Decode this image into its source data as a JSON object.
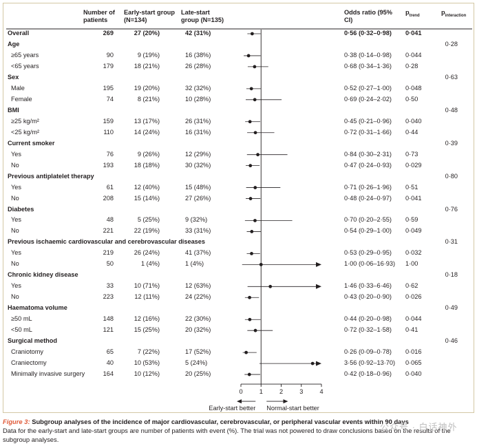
{
  "headers": {
    "patients": "Number of patients",
    "early": "Early-start group (N=134)",
    "late": "Late-start group (N=135)",
    "or": "Odds ratio (95% CI)",
    "ptrend": "p",
    "ptrend_sub": "trend",
    "pinter": "p",
    "pinter_sub": "interaction"
  },
  "chart_data": {
    "type": "forest",
    "x_ticks": [
      "0",
      "1",
      "2",
      "3",
      "4"
    ],
    "xlim": [
      0,
      4
    ],
    "reference_line": 1,
    "left_label": "Early-start better",
    "right_label": "Normal-start better",
    "rows": [
      {
        "kind": "row",
        "label": "Overall",
        "bold": true,
        "n": "269",
        "early": "27 (20%)",
        "late": "42 (31%)",
        "or_text": "0·56 (0·32–0·98)",
        "ptrend": "0·041",
        "est": 0.56,
        "lo": 0.32,
        "hi": 0.98
      },
      {
        "kind": "section",
        "label": "Age",
        "pinter": "0·28"
      },
      {
        "kind": "row",
        "label": "≥65 years",
        "n": "90",
        "early": "9 (19%)",
        "late": "16 (38%)",
        "or_text": "0·38 (0·14–0·98)",
        "ptrend": "0·044",
        "est": 0.38,
        "lo": 0.14,
        "hi": 0.98
      },
      {
        "kind": "row",
        "label": "<65 years",
        "n": "179",
        "early": "18 (21%)",
        "late": "26 (28%)",
        "or_text": "0·68 (0·34–1·36)",
        "ptrend": "0·28",
        "est": 0.68,
        "lo": 0.34,
        "hi": 1.36
      },
      {
        "kind": "section",
        "label": "Sex",
        "pinter": "0·63"
      },
      {
        "kind": "row",
        "label": "Male",
        "n": "195",
        "early": "19 (20%)",
        "late": "32 (32%)",
        "or_text": "0·52 (0·27–1·00)",
        "ptrend": "0·048",
        "est": 0.52,
        "lo": 0.27,
        "hi": 1.0
      },
      {
        "kind": "row",
        "label": "Female",
        "n": "74",
        "early": "8 (21%)",
        "late": "10 (28%)",
        "or_text": "0·69 (0·24–2·02)",
        "ptrend": "0·50",
        "est": 0.69,
        "lo": 0.24,
        "hi": 2.02
      },
      {
        "kind": "section",
        "label": "BMI",
        "pinter": "0·48"
      },
      {
        "kind": "row",
        "label": "≥25 kg/m²",
        "n": "159",
        "early": "13 (17%)",
        "late": "26 (31%)",
        "or_text": "0·45 (0·21–0·96)",
        "ptrend": "0·040",
        "est": 0.45,
        "lo": 0.21,
        "hi": 0.96
      },
      {
        "kind": "row",
        "label": "<25 kg/m²",
        "n": "110",
        "early": "14 (24%)",
        "late": "16 (31%)",
        "or_text": "0·72 (0·31–1·66)",
        "ptrend": "0·44",
        "est": 0.72,
        "lo": 0.31,
        "hi": 1.66
      },
      {
        "kind": "section",
        "label": "Current smoker",
        "pinter": "0·39"
      },
      {
        "kind": "row",
        "label": "Yes",
        "n": "76",
        "early": "9 (26%)",
        "late": "12 (29%)",
        "or_text": "0·84 (0·30–2·31)",
        "ptrend": "0·73",
        "est": 0.84,
        "lo": 0.3,
        "hi": 2.31
      },
      {
        "kind": "row",
        "label": "No",
        "n": "193",
        "early": "18 (18%)",
        "late": "30 (32%)",
        "or_text": "0·47 (0·24–0·93)",
        "ptrend": "0·029",
        "est": 0.47,
        "lo": 0.24,
        "hi": 0.93
      },
      {
        "kind": "section",
        "label": "Previous antiplatelet therapy",
        "pinter": "0·80"
      },
      {
        "kind": "row",
        "label": "Yes",
        "n": "61",
        "early": "12 (40%)",
        "late": "15 (48%)",
        "or_text": "0·71 (0·26–1·96)",
        "ptrend": "0·51",
        "est": 0.71,
        "lo": 0.26,
        "hi": 1.96
      },
      {
        "kind": "row",
        "label": "No",
        "n": "208",
        "early": "15 (14%)",
        "late": "27 (26%)",
        "or_text": "0·48 (0·24–0·97)",
        "ptrend": "0·041",
        "est": 0.48,
        "lo": 0.24,
        "hi": 0.97
      },
      {
        "kind": "section",
        "label": "Diabetes",
        "pinter": "0·76"
      },
      {
        "kind": "row",
        "label": "Yes",
        "n": "48",
        "early": "5 (25%)",
        "late": "9 (32%)",
        "or_text": "0·70 (0·20–2·55)",
        "ptrend": "0·59",
        "est": 0.7,
        "lo": 0.2,
        "hi": 2.55
      },
      {
        "kind": "row",
        "label": "No",
        "n": "221",
        "early": "22 (19%)",
        "late": "33 (31%)",
        "or_text": "0·54 (0·29–1·00)",
        "ptrend": "0·049",
        "est": 0.54,
        "lo": 0.29,
        "hi": 1.0
      },
      {
        "kind": "section",
        "label": "Previous ischaemic cardiovascular and cerebrovascular diseases",
        "pinter": "0·31"
      },
      {
        "kind": "row",
        "label": "Yes",
        "n": "219",
        "early": "26 (24%)",
        "late": "41 (37%)",
        "or_text": "0·53 (0·29–0·95)",
        "ptrend": "0·032",
        "est": 0.53,
        "lo": 0.29,
        "hi": 0.95
      },
      {
        "kind": "row",
        "label": "No",
        "n": "50",
        "early": "1 (4%)",
        "late": "1 (4%)",
        "or_text": "1·00 (0·06–16·93)",
        "ptrend": "1·00",
        "est": 1.0,
        "lo": 0.06,
        "hi": 16.93
      },
      {
        "kind": "section",
        "label": "Chronic kidney disease",
        "pinter": "0·18"
      },
      {
        "kind": "row",
        "label": "Yes",
        "n": "33",
        "early": "10 (71%)",
        "late": "12 (63%)",
        "or_text": "1·46 (0·33–6·46)",
        "ptrend": "0·62",
        "est": 1.46,
        "lo": 0.33,
        "hi": 6.46
      },
      {
        "kind": "row",
        "label": "No",
        "n": "223",
        "early": "12 (11%)",
        "late": "24 (22%)",
        "or_text": "0·43 (0·20–0·90)",
        "ptrend": "0·026",
        "est": 0.43,
        "lo": 0.2,
        "hi": 0.9
      },
      {
        "kind": "section",
        "label": "Haematoma volume",
        "pinter": "0·49"
      },
      {
        "kind": "row",
        "label": "≥50 mL",
        "n": "148",
        "early": "12 (16%)",
        "late": "22 (30%)",
        "or_text": "0·44 (0·20–0·98)",
        "ptrend": "0·044",
        "est": 0.44,
        "lo": 0.2,
        "hi": 0.98
      },
      {
        "kind": "row",
        "label": "<50 mL",
        "n": "121",
        "early": "15 (25%)",
        "late": "20 (32%)",
        "or_text": "0·72 (0·32–1·58)",
        "ptrend": "0·41",
        "est": 0.72,
        "lo": 0.32,
        "hi": 1.58
      },
      {
        "kind": "section",
        "label": "Surgical method",
        "pinter": "0·46"
      },
      {
        "kind": "row",
        "label": "Craniotomy",
        "n": "65",
        "early": "7 (22%)",
        "late": "17 (52%)",
        "or_text": "0·26 (0·09–0·78)",
        "ptrend": "0·016",
        "est": 0.26,
        "lo": 0.09,
        "hi": 0.78
      },
      {
        "kind": "row",
        "label": "Craniectomy",
        "n": "40",
        "early": "10 (53%)",
        "late": "5 (24%)",
        "or_text": "3·56 (0·92–13·70)",
        "ptrend": "0·065",
        "est": 3.56,
        "lo": 0.92,
        "hi": 13.7
      },
      {
        "kind": "row",
        "label": "Minimally invasive surgery",
        "n": "164",
        "early": "10 (12%)",
        "late": "20 (25%)",
        "or_text": "0·42 (0·18–0·96)",
        "ptrend": "0·040",
        "est": 0.42,
        "lo": 0.18,
        "hi": 0.96
      }
    ]
  },
  "caption": {
    "figure_label": "Figure 3:",
    "title": "Subgroup analyses of the incidence of major cardiovascular, cerebrovascular, or peripheral vascular events within 90 days",
    "body": "Data for the early-start and late-start groups are number of patients with event (%). The trial was not powered to draw conclusions based on the results of the subgroup analyses."
  },
  "watermark": "公众号 · 白话神外",
  "colors": {
    "text": "#231f20",
    "accent": "#e05b3a",
    "frame": "#d3c7a4"
  }
}
